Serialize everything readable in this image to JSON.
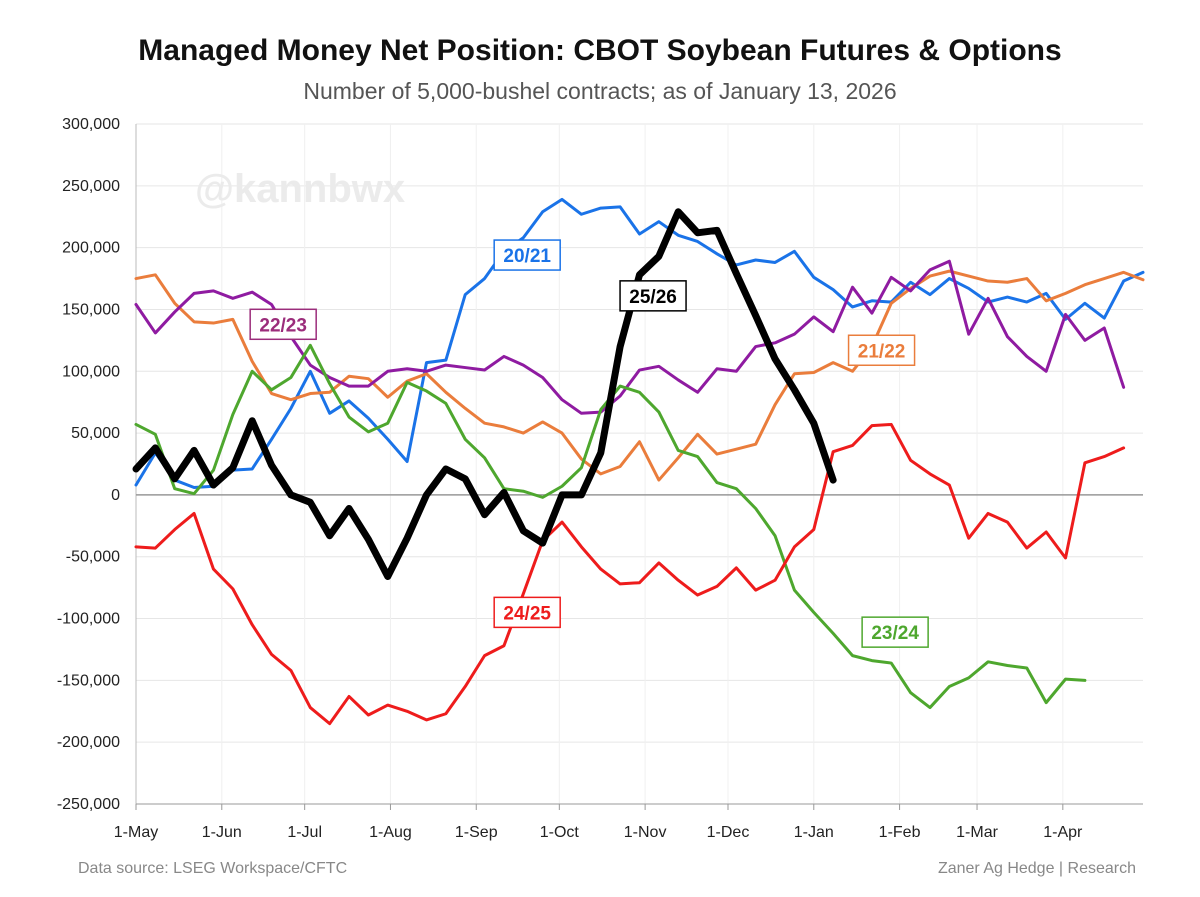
{
  "title": "Managed Money Net Position: CBOT Soybean Futures & Options",
  "subtitle": "Number of 5,000-bushel contracts; as of January 13, 2026",
  "source": "Data source: LSEG Workspace/CFTC",
  "credit": "Zaner Ag Hedge | Research",
  "watermark": "@kannbwx",
  "chart_data": {
    "type": "line",
    "title": "Managed Money Net Position: CBOT Soybean Futures & Options",
    "xlabel": "",
    "ylabel": "",
    "ylim": [
      -250000,
      300000
    ],
    "y_ticks": [
      300000,
      250000,
      200000,
      150000,
      100000,
      50000,
      0,
      -50000,
      -100000,
      -150000,
      -200000,
      -250000
    ],
    "y_tick_labels": [
      "300,000",
      "250,000",
      "200,000",
      "150,000",
      "100,000",
      "50,000",
      "0",
      "-50,000",
      "-100,000",
      "-150,000",
      "-200,000",
      "-250,000"
    ],
    "x_unit": "weeks since May 1",
    "xlim": [
      0,
      52
    ],
    "x_ticks": [
      0,
      4.43,
      8.71,
      13.14,
      17.57,
      21.86,
      26.29,
      30.57,
      35,
      39.43,
      43.43,
      47.86
    ],
    "x_tick_labels": [
      "1-May",
      "1-Jun",
      "1-Jul",
      "1-Aug",
      "1-Sep",
      "1-Oct",
      "1-Nov",
      "1-Dec",
      "1-Jan",
      "1-Feb",
      "1-Mar",
      "1-Apr"
    ],
    "grid": true,
    "series": [
      {
        "name": "20/21",
        "color": "#1a73e8",
        "width": 3,
        "label_box": {
          "text": "20/21",
          "x": 20.2,
          "y": 194000,
          "color": "#1a73e8"
        },
        "values": [
          8000,
          34000,
          12000,
          6000,
          7000,
          20000,
          21000,
          45000,
          70000,
          100000,
          66000,
          76000,
          62000,
          45000,
          27000,
          107000,
          109000,
          162000,
          175000,
          197000,
          208000,
          229000,
          239000,
          227000,
          232000,
          233000,
          211000,
          221000,
          210000,
          205000,
          195000,
          186000,
          190000,
          188000,
          197000,
          176000,
          166000,
          152000,
          157000,
          156000,
          172000,
          162000,
          175000,
          167000,
          156000,
          160000,
          156000,
          163000,
          142000,
          155000,
          143000,
          173000,
          180000
        ]
      },
      {
        "name": "21/22",
        "color": "#ea7d3c",
        "width": 3,
        "label_box": {
          "text": "21/22",
          "x": 38.5,
          "y": 117000,
          "color": "#ea7d3c"
        },
        "values": [
          175000,
          178000,
          155000,
          140000,
          139000,
          142000,
          108000,
          82000,
          77000,
          82000,
          83000,
          96000,
          94000,
          79000,
          92000,
          98000,
          83000,
          70000,
          58000,
          55000,
          50000,
          59000,
          50000,
          29000,
          17000,
          23000,
          43000,
          12000,
          30000,
          49000,
          33000,
          37000,
          41000,
          73000,
          98000,
          99000,
          107000,
          100000,
          120000,
          155000,
          167000,
          177000,
          181000,
          177000,
          173000,
          172000,
          175000,
          157000,
          163000,
          170000,
          175000,
          180000,
          174000
        ]
      },
      {
        "name": "22/23",
        "color": "#8f1ba1",
        "width": 3,
        "label_box": {
          "text": "22/23",
          "x": 7.6,
          "y": 138000,
          "color": "#9b2d7b"
        },
        "values": [
          154000,
          131000,
          148000,
          163000,
          165000,
          159000,
          164000,
          154000,
          128000,
          105000,
          95000,
          88000,
          88000,
          100000,
          102000,
          100000,
          105000,
          103000,
          101000,
          112000,
          105000,
          95000,
          77000,
          66000,
          67000,
          80000,
          101000,
          104000,
          93000,
          83000,
          102000,
          100000,
          120000,
          123000,
          130000,
          144000,
          132000,
          168000,
          147000,
          176000,
          165000,
          182000,
          189000,
          130000,
          159000,
          128000,
          112000,
          100000,
          146000,
          125000,
          135000,
          87000
        ]
      },
      {
        "name": "23/24",
        "color": "#4ea72e",
        "width": 3,
        "label_box": {
          "text": "23/24",
          "x": 39.2,
          "y": -111000,
          "color": "#4ea72e"
        },
        "values": [
          57000,
          49000,
          5000,
          1000,
          20000,
          65000,
          100000,
          85000,
          95000,
          121000,
          90000,
          63000,
          51000,
          58000,
          91000,
          84000,
          74000,
          45000,
          30000,
          5000,
          3000,
          -2000,
          7000,
          22000,
          69000,
          88000,
          83000,
          67000,
          36000,
          31000,
          10000,
          5000,
          -11000,
          -33000,
          -77000,
          -95000,
          -112000,
          -130000,
          -134000,
          -136000,
          -160000,
          -172000,
          -155000,
          -148000,
          -135000,
          -138000,
          -140000,
          -168000,
          -149000,
          -150000
        ]
      },
      {
        "name": "24/25",
        "color": "#ee1c1c",
        "width": 3,
        "label_box": {
          "text": "24/25",
          "x": 20.2,
          "y": -95000,
          "color": "#ee1c1c"
        },
        "values": [
          -42000,
          -43000,
          -28000,
          -15000,
          -60000,
          -76000,
          -105000,
          -129000,
          -142000,
          -172000,
          -185000,
          -163000,
          -178000,
          -170000,
          -175000,
          -182000,
          -177000,
          -155000,
          -130000,
          -122000,
          -80000,
          -37000,
          -22000,
          -42000,
          -60000,
          -72000,
          -71000,
          -55000,
          -69000,
          -81000,
          -74000,
          -59000,
          -77000,
          -69000,
          -42000,
          -28000,
          35000,
          40000,
          56000,
          57000,
          28000,
          17000,
          8000,
          -35000,
          -15000,
          -22000,
          -43000,
          -30000,
          -51000,
          26000,
          31000,
          38000
        ]
      },
      {
        "name": "25/26",
        "color": "#000000",
        "width": 7,
        "label_box": {
          "text": "25/26",
          "x": 26.7,
          "y": 161000,
          "color": "#000000"
        },
        "values": [
          21000,
          38000,
          13000,
          36000,
          8000,
          22000,
          60000,
          24000,
          0,
          -6000,
          -33000,
          -11000,
          -36000,
          -66000,
          -35000,
          0,
          21000,
          13000,
          -16000,
          2000,
          -29000,
          -39000,
          0,
          0,
          34000,
          120000,
          178000,
          193000,
          229000,
          212000,
          214000,
          179000,
          145000,
          110000,
          85000,
          58000,
          12000
        ]
      }
    ]
  }
}
